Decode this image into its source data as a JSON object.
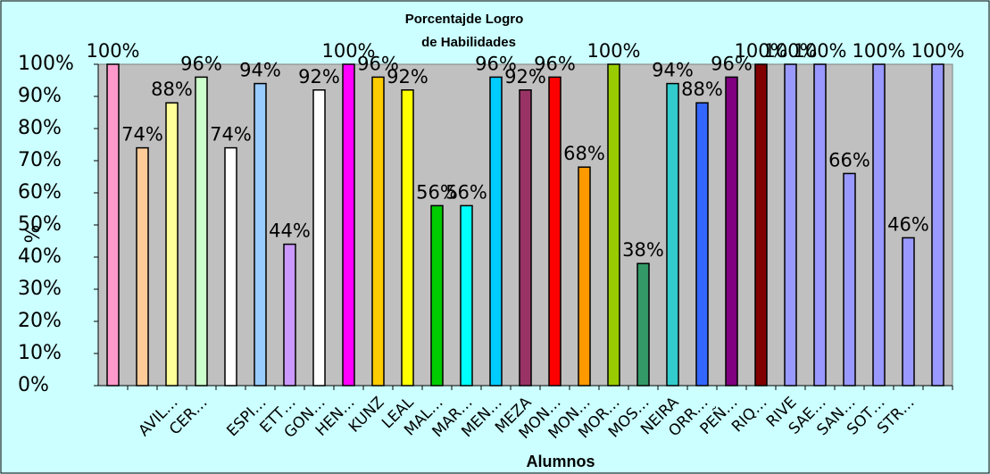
{
  "chart_data": {
    "type": "bar",
    "title": [
      "Porcentajde Logro",
      "de Habilidades"
    ],
    "x_label": "Alumnos",
    "y_label": "%",
    "categories": [
      null,
      null,
      "AVIL…",
      "CER…",
      null,
      "ESPI…",
      "ETT…",
      "GON…",
      "HEN…",
      "KUNZ",
      "LEAL",
      "MAL…",
      "MAR…",
      "MEN…",
      "MEZA",
      "MON…",
      "MON…",
      "MOR…",
      "MOS…",
      "NEIRA",
      "ORR…",
      "PEÑ…",
      "RIQ…",
      "RIVE",
      "SAE…",
      "SAN…",
      "SOT…",
      "STR…",
      null
    ],
    "values": [
      100,
      74,
      88,
      96,
      74,
      94,
      44,
      92,
      100,
      96,
      92,
      56,
      56,
      96,
      92,
      96,
      68,
      100,
      38,
      94,
      88,
      96,
      100,
      100,
      100,
      66,
      100,
      46,
      100
    ],
    "value_labels": [
      "100%",
      "74%",
      "88%",
      "96%",
      "74%",
      "94%",
      "44%",
      "92%",
      "100%",
      "96%",
      "92%",
      "56%",
      "56%",
      "96%",
      "92%",
      "96%",
      "68%",
      "100%",
      "38%",
      "94%",
      "88%",
      "96%",
      "100%",
      "100%",
      "100%",
      "66%",
      "100%",
      "46%",
      "100%"
    ],
    "colors": [
      "#ff99cc",
      "#ffcc99",
      "#ffff99",
      "#ccffcc",
      "#ffffff",
      "#99ccff",
      "#cc99ff",
      "#ffffff",
      "#ff00ff",
      "#ffcc00",
      "#ffff00",
      "#00cc00",
      "#00ffff",
      "#00ccff",
      "#993366",
      "#ff0000",
      "#ff9900",
      "#99cc00",
      "#339966",
      "#33cccc",
      "#3366ff",
      "#800080",
      "#800000",
      "#9999ff",
      "#9999ff",
      "#9999ff",
      "#9999ff",
      "#9999ff",
      "#9999ff"
    ],
    "ylim": [
      0,
      100
    ],
    "yticks": [
      {
        "value": 0,
        "label": "0%"
      },
      {
        "value": 10,
        "label": "10%"
      },
      {
        "value": 20,
        "label": "20%"
      },
      {
        "value": 30,
        "label": "30%"
      },
      {
        "value": 40,
        "label": "40%"
      },
      {
        "value": 50,
        "label": "50%"
      },
      {
        "value": 60,
        "label": "60%"
      },
      {
        "value": 70,
        "label": "70%"
      },
      {
        "value": 80,
        "label": "80%"
      },
      {
        "value": 90,
        "label": "90%"
      },
      {
        "value": 100,
        "label": "100%"
      }
    ]
  }
}
